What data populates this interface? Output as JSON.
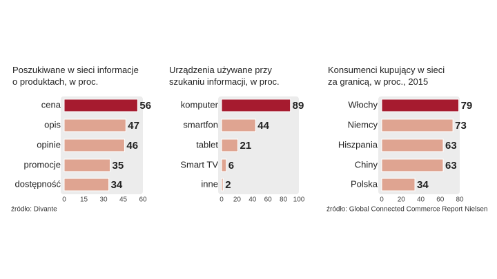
{
  "chart_data": [
    {
      "type": "bar",
      "orientation": "horizontal",
      "title": [
        "Poszukiwane w sieci informacje",
        "o produktach, w proc."
      ],
      "categories": [
        "cena",
        "opis",
        "opinie",
        "promocje",
        "dostępność"
      ],
      "values": [
        56,
        47,
        46,
        35,
        34
      ],
      "colors": [
        "#a61b2f",
        "#dfa491",
        "#dfa491",
        "#dfa491",
        "#dfa491"
      ],
      "xlim": [
        0,
        60
      ],
      "xticks": [
        0,
        15,
        30,
        45,
        60
      ],
      "source": "źródło: Divante"
    },
    {
      "type": "bar",
      "orientation": "horizontal",
      "title": [
        "Urządzenia używane przy",
        "szukaniu informacji, w proc."
      ],
      "categories": [
        "komputer",
        "smartfon",
        "tablet",
        "Smart TV",
        "inne"
      ],
      "values": [
        89,
        44,
        21,
        6,
        2
      ],
      "colors": [
        "#a61b2f",
        "#dfa491",
        "#dfa491",
        "#dfa491",
        "#dfa491"
      ],
      "xlim": [
        0,
        100
      ],
      "xticks": [
        0,
        20,
        40,
        60,
        80,
        100
      ]
    },
    {
      "type": "bar",
      "orientation": "horizontal",
      "title": [
        "Konsumenci kupujący w sieci",
        "za granicą, w proc., 2015"
      ],
      "categories": [
        "Włochy",
        "Niemcy",
        "Hiszpania",
        "Chiny",
        "Polska"
      ],
      "values": [
        79,
        73,
        63,
        63,
        34
      ],
      "colors": [
        "#a61b2f",
        "#dfa491",
        "#dfa491",
        "#dfa491",
        "#dfa491"
      ],
      "xlim": [
        0,
        80
      ],
      "xticks": [
        0,
        20,
        40,
        60,
        80
      ],
      "source": "źródło: Global Connected Commerce Report  Nielsen"
    }
  ]
}
